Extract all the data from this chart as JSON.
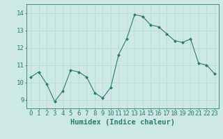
{
  "x": [
    0,
    1,
    2,
    3,
    4,
    5,
    6,
    7,
    8,
    9,
    10,
    11,
    12,
    13,
    14,
    15,
    16,
    17,
    18,
    19,
    20,
    21,
    22,
    23
  ],
  "y": [
    10.3,
    10.6,
    9.9,
    8.9,
    9.5,
    10.7,
    10.6,
    10.3,
    9.4,
    9.1,
    9.7,
    11.6,
    12.5,
    13.9,
    13.8,
    13.3,
    13.2,
    12.8,
    12.4,
    12.3,
    12.5,
    11.1,
    11.0,
    10.5
  ],
  "xlabel": "Humidex (Indice chaleur)",
  "ylim": [
    8.5,
    14.5
  ],
  "xlim": [
    -0.5,
    23.5
  ],
  "yticks": [
    9,
    10,
    11,
    12,
    13,
    14
  ],
  "xticks": [
    0,
    1,
    2,
    3,
    4,
    5,
    6,
    7,
    8,
    9,
    10,
    11,
    12,
    13,
    14,
    15,
    16,
    17,
    18,
    19,
    20,
    21,
    22,
    23
  ],
  "line_color": "#2d7d6e",
  "marker_color": "#2d7d6e",
  "bg_color": "#cde8e5",
  "grid_color": "#b8d8d5",
  "axis_color": "#2d7d6e",
  "tick_label_color": "#2d7d6e",
  "xlabel_color": "#2d7d6e",
  "xlabel_fontsize": 7.5,
  "tick_fontsize": 6.5
}
